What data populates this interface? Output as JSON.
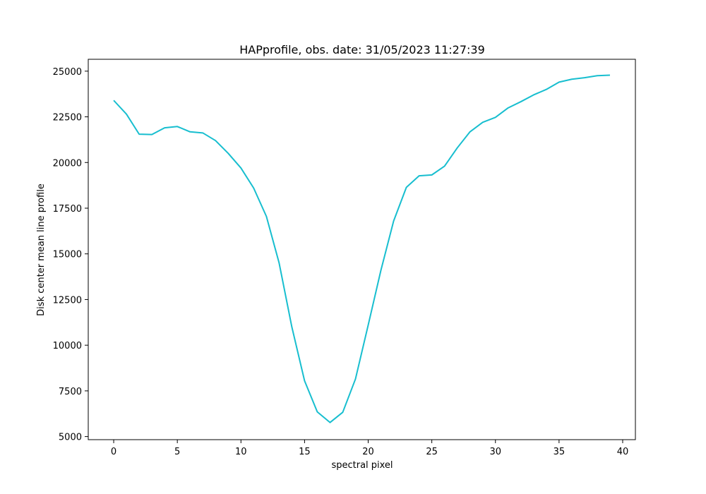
{
  "chart_data": {
    "type": "line",
    "title": "HAPprofile, obs. date: 31/05/2023 11:27:39",
    "xlabel": "spectral pixel",
    "ylabel": "Disk center mean line profile",
    "xlim": [
      -2,
      41
    ],
    "ylim": [
      4830,
      25650
    ],
    "grid": false,
    "xticks": [
      0,
      5,
      10,
      15,
      20,
      25,
      30,
      35,
      40
    ],
    "yticks": [
      5000,
      7500,
      10000,
      12500,
      15000,
      17500,
      20000,
      22500,
      25000
    ],
    "series": [
      {
        "color": "#17becf",
        "x": [
          0,
          1,
          2,
          3,
          4,
          5,
          6,
          7,
          8,
          9,
          10,
          11,
          12,
          13,
          14,
          15,
          16,
          17,
          18,
          19,
          20,
          21,
          22,
          23,
          24,
          25,
          26,
          27,
          28,
          29,
          30,
          31,
          32,
          33,
          34,
          35,
          36,
          37,
          38,
          39
        ],
        "y": [
          23400,
          22650,
          21550,
          21530,
          21900,
          21970,
          21680,
          21620,
          21200,
          20500,
          19700,
          18600,
          17050,
          14500,
          11000,
          8050,
          6350,
          5770,
          6330,
          8150,
          11100,
          14100,
          16800,
          18640,
          19270,
          19320,
          19800,
          20800,
          21680,
          22200,
          22470,
          22990,
          23330,
          23700,
          24000,
          24400,
          24560,
          24640,
          24750,
          24780
        ]
      }
    ]
  }
}
